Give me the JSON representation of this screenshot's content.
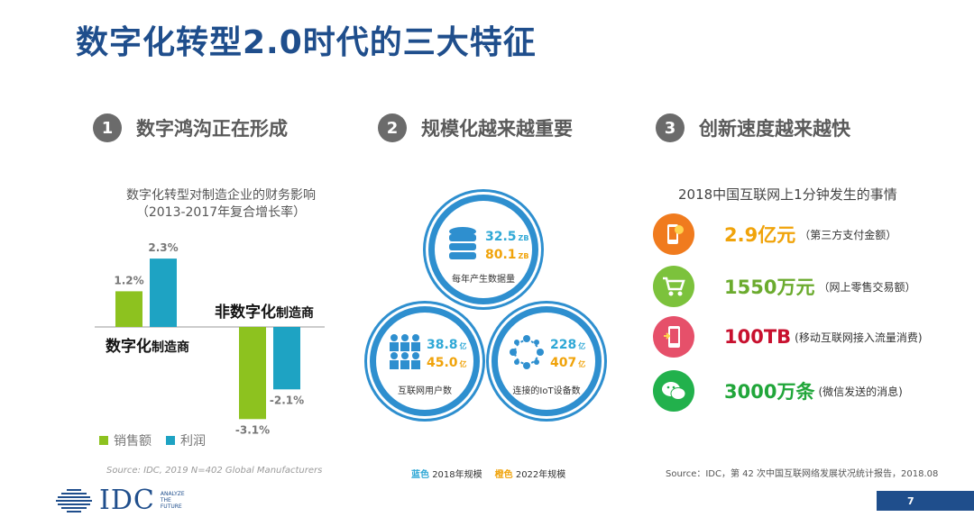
{
  "title": "数字化转型2.0时代的三大特征",
  "sections": [
    {
      "num": "1",
      "label": "数字鸿沟正在形成"
    },
    {
      "num": "2",
      "label": "规模化越来越重要"
    },
    {
      "num": "3",
      "label": "创新速度越来越快"
    }
  ],
  "chart_data": {
    "type": "bar",
    "title": "数字化转型对制造企业的财务影响",
    "subtitle": "（2013-2017年复合增长率）",
    "categories": [
      "数字化制造商",
      "非数字化制造商"
    ],
    "series": [
      {
        "name": "销售额",
        "values": [
          1.2,
          -3.1
        ],
        "color": "#8dc21f"
      },
      {
        "name": "利润",
        "values": [
          2.3,
          -2.1
        ],
        "color": "#1ea3c3"
      }
    ],
    "data_labels": [
      [
        "1.2%",
        "2.3%"
      ],
      [
        "-3.1%",
        "-2.1%"
      ]
    ],
    "category_labels": [
      {
        "bold": "数字化",
        "rest": "制造商"
      },
      {
        "bold": "非数字化",
        "rest": "制造商"
      }
    ]
  },
  "source1": "Source: IDC, 2019 N=402 Global Manufacturers",
  "circles": [
    {
      "blue_value": "32.5",
      "blue_unit": "ZB",
      "orange_value": "80.1",
      "orange_unit": "ZB",
      "caption": "每年产生数据量",
      "icon": "database-icon"
    },
    {
      "blue_value": "38.8",
      "blue_unit": "亿",
      "orange_value": "45.0",
      "orange_unit": "亿",
      "caption": "互联网用户数",
      "icon": "users-icon"
    },
    {
      "blue_value": "228",
      "blue_unit": "亿",
      "orange_value": "407",
      "orange_unit": "亿",
      "caption": "连接的IoT设备数",
      "icon": "network-icon"
    }
  ],
  "legend2": {
    "blue_key": "蓝色",
    "blue_text": "2018年规模",
    "orange_key": "橙色",
    "orange_text": "2022年规模"
  },
  "right": {
    "title": "2018中国互联网上1分钟发生的事情",
    "items": [
      {
        "value": "2.9亿元",
        "note": "（第三方支付金额）",
        "color": "#f0a30a",
        "icon_bg": "#f07b1e",
        "icon": "phone-payment-icon"
      },
      {
        "value": "1550万元",
        "note": "（网上零售交易额）",
        "color": "#6bab2e",
        "icon_bg": "#7cc23c",
        "icon": "shopping-cart-icon"
      },
      {
        "value": "100TB",
        "note": "(移动互联网接入流量消费)",
        "color": "#c8102e",
        "icon_bg": "#e6506a",
        "icon": "mobile-data-icon"
      },
      {
        "value": "3000万条",
        "note": "(微信发送的消息)",
        "color": "#21a63a",
        "icon_bg": "#22b14c",
        "icon": "wechat-icon"
      }
    ]
  },
  "source3": "Source：IDC，第 42 次中国互联网络发展状况统计报告，2018.08",
  "footer": {
    "logo": "IDC",
    "tagline": [
      "ANALYZE",
      "THE",
      "FUTURE"
    ],
    "page": "7"
  }
}
